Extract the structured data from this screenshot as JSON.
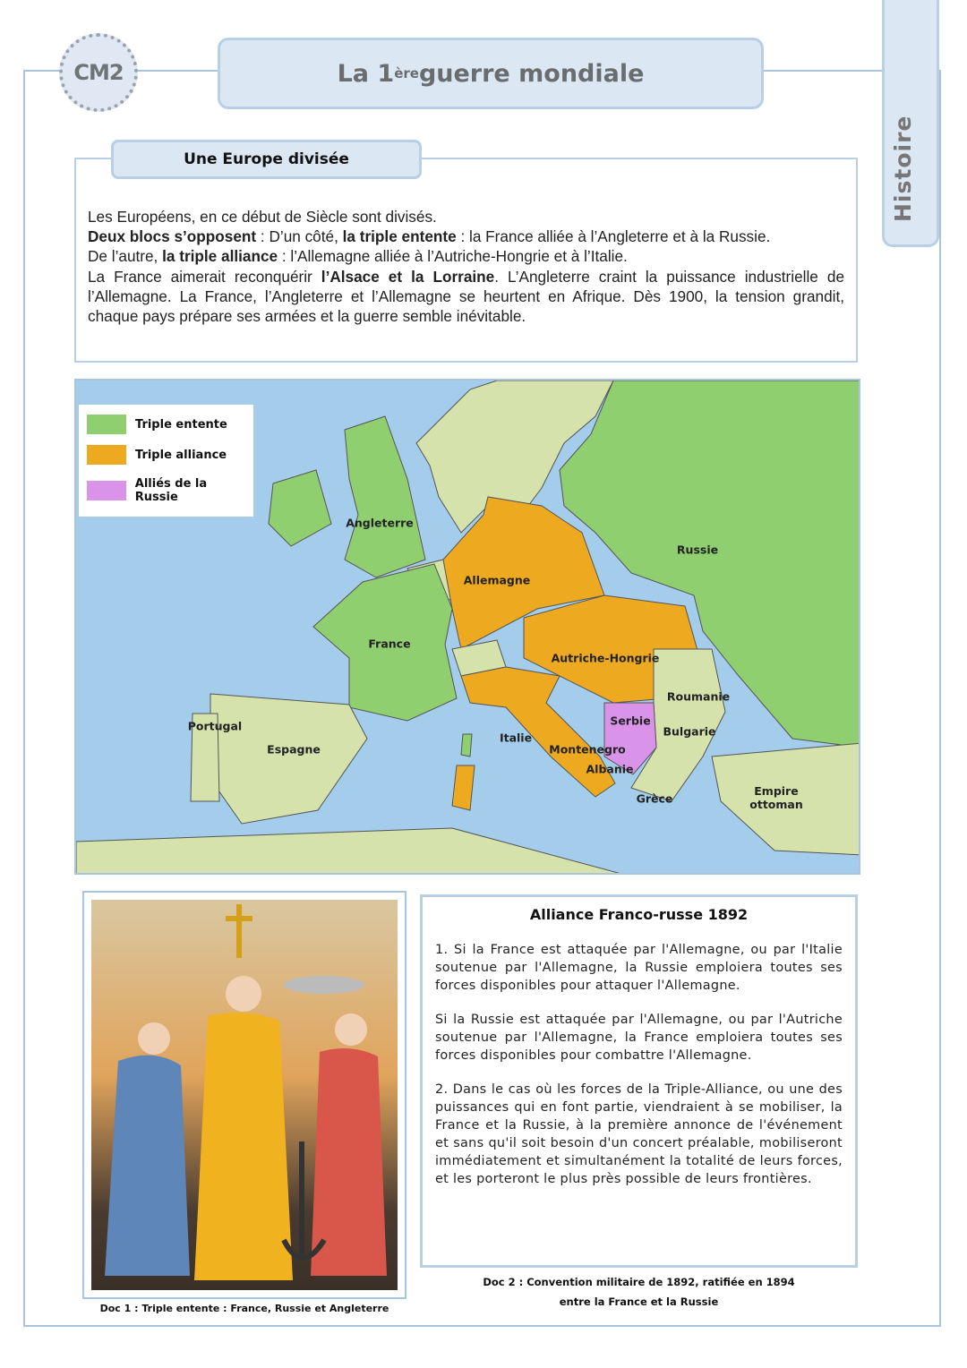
{
  "header": {
    "level": "CM2",
    "title_prefix": "La 1",
    "title_sup": "ère",
    "title_suffix": " guerre mondiale",
    "subject": "Histoire"
  },
  "section": {
    "title": "Une Europe divisée",
    "p1": "Les Européens, en ce début de Siècle sont divisés.",
    "p2_b1": "Deux blocs s’opposent",
    "p2_t1": " : D’un côté, ",
    "p2_b2": "la triple entente",
    "p2_t2": " : la France alliée à l’Angleterre et à la Russie.",
    "p3_t1": "De l’autre, ",
    "p3_b1": "la triple alliance",
    "p3_t2": " : l’Allemagne alliée à l’Autriche-Hongrie et à  l’Italie.",
    "p4_t1": "La France aimerait reconquérir ",
    "p4_b1": "l’Alsace et la Lorraine",
    "p4_t2": ". L’Angleterre craint la puissance industrielle de l’Allemagne. La France, l’Angleterre et l’Allemagne se heurtent en Afrique. Dès 1900,  la tension grandit, chaque pays prépare ses armées et la guerre semble inévitable."
  },
  "map": {
    "legend": [
      {
        "label": "Triple entente",
        "color": "#8fcf6f"
      },
      {
        "label": "Triple alliance",
        "color": "#eda920"
      },
      {
        "label": "Alliés de la Russie",
        "color": "#d994ea"
      }
    ],
    "neutral_color": "#d5e2ac",
    "sea_color": "#a3cdea",
    "labels": [
      "Angleterre",
      "Russie",
      "Allemagne",
      "France",
      "Autriche-Hongrie",
      "Roumanie",
      "Serbie",
      "Bulgarie",
      "Portugal",
      "Espagne",
      "Italie",
      "Montenegro",
      "Albanie",
      "Grèce",
      "Empire ottoman"
    ]
  },
  "doc1": {
    "caption": "Doc 1 : Triple entente : France, Russie et Angleterre"
  },
  "doc2": {
    "title": "Alliance Franco-russe 1892",
    "paragraphs": [
      "1. Si la France est attaquée par l'Allemagne, ou par l'Italie soutenue par l'Allemagne, la Russie emploiera toutes ses forces disponibles pour attaquer l'Allemagne.",
      "Si la Russie est attaquée par l'Allemagne, ou par l'Autriche soutenue par l'Allemagne, la France emploiera toutes ses forces disponibles pour combattre l'Allemagne.",
      "2. Dans le cas où les forces de la Triple-Alliance, ou une des puissances qui en font partie, viendraient à se mobiliser, la France et la Russie, à la première annonce de l'événement et sans qu'il soit besoin d'un concert préalable, mobiliseront immédiatement et simultanément la totalité de leurs forces, et les porteront le plus près possible de leurs frontières."
    ],
    "caption_line1": "Doc 2 : Convention militaire de 1892, ratifiée en 1894",
    "caption_line2": "entre la France et la Russie"
  }
}
